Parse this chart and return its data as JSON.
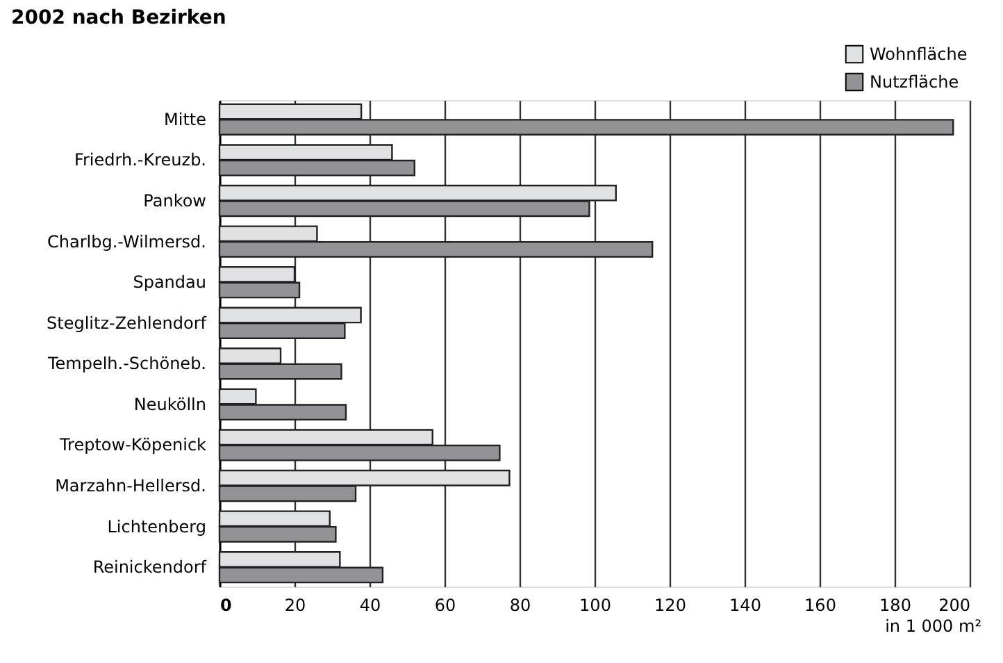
{
  "chart_data": {
    "type": "bar",
    "orientation": "horizontal",
    "title": "2002 nach Bezirken",
    "xlabel": "in 1 000 m²",
    "categories": [
      "Mitte",
      "Friedrh.-Kreuzb.",
      "Pankow",
      "Charlbg.-Wilmersd.",
      "Spandau",
      "Steglitz-Zehlendorf",
      "Tempelh.-Schöneb.",
      "Neukölln",
      "Treptow-Köpenick",
      "Marzahn-Hellersd.",
      "Lichtenberg",
      "Reinickendorf"
    ],
    "series": [
      {
        "name": "Wohnfläche",
        "color": "#e0e1e3",
        "values": [
          37.8,
          46,
          105.7,
          26,
          20,
          37.7,
          16.3,
          9.7,
          56.8,
          77.3,
          29.4,
          32.1
        ]
      },
      {
        "name": "Nutzfläche",
        "color": "#939296",
        "values": [
          195.6,
          52,
          98.6,
          115.4,
          21.3,
          33.4,
          32.5,
          33.7,
          74.7,
          36.3,
          31,
          43.5
        ]
      }
    ],
    "xlim": [
      0,
      200
    ],
    "xticks": [
      0,
      20,
      40,
      60,
      80,
      100,
      120,
      140,
      160,
      180,
      200
    ],
    "grid": "x",
    "legend": "top right"
  }
}
